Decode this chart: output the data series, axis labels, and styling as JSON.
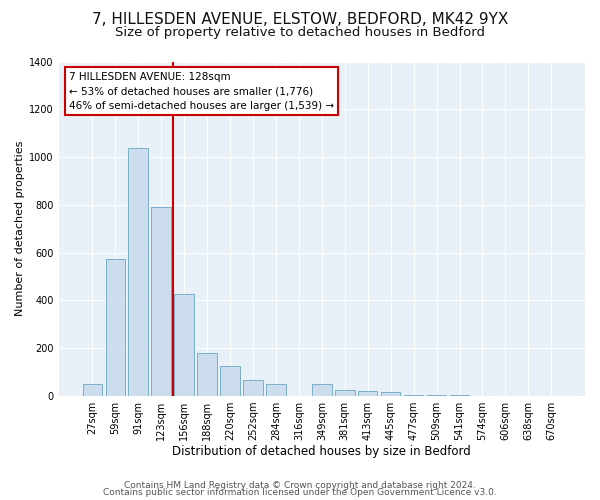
{
  "title1": "7, HILLESDEN AVENUE, ELSTOW, BEDFORD, MK42 9YX",
  "title2": "Size of property relative to detached houses in Bedford",
  "xlabel": "Distribution of detached houses by size in Bedford",
  "ylabel": "Number of detached properties",
  "categories": [
    "27sqm",
    "59sqm",
    "91sqm",
    "123sqm",
    "156sqm",
    "188sqm",
    "220sqm",
    "252sqm",
    "284sqm",
    "316sqm",
    "349sqm",
    "381sqm",
    "413sqm",
    "445sqm",
    "477sqm",
    "509sqm",
    "541sqm",
    "574sqm",
    "606sqm",
    "638sqm",
    "670sqm"
  ],
  "values": [
    50,
    575,
    1040,
    790,
    425,
    178,
    125,
    65,
    50,
    0,
    50,
    25,
    20,
    15,
    5,
    3,
    2,
    1,
    0,
    0,
    0
  ],
  "bar_color": "#ccdded",
  "bar_edge_color": "#7aafc8",
  "vline_color": "#cc0000",
  "annotation_text": "7 HILLESDEN AVENUE: 128sqm\n← 53% of detached houses are smaller (1,776)\n46% of semi-detached houses are larger (1,539) →",
  "annotation_box_edge": "#cc0000",
  "annotation_box_face": "#ffffff",
  "ylim": [
    0,
    1400
  ],
  "yticks": [
    0,
    200,
    400,
    600,
    800,
    1000,
    1200,
    1400
  ],
  "footer1": "Contains HM Land Registry data © Crown copyright and database right 2024.",
  "footer2": "Contains public sector information licensed under the Open Government Licence v3.0.",
  "bg_color": "#ffffff",
  "plot_bg_color": "#e8f0f8",
  "title1_fontsize": 11,
  "title2_fontsize": 9.5,
  "xlabel_fontsize": 8.5,
  "ylabel_fontsize": 8,
  "tick_fontsize": 7,
  "footer_fontsize": 6.5,
  "vline_xindex": 3
}
